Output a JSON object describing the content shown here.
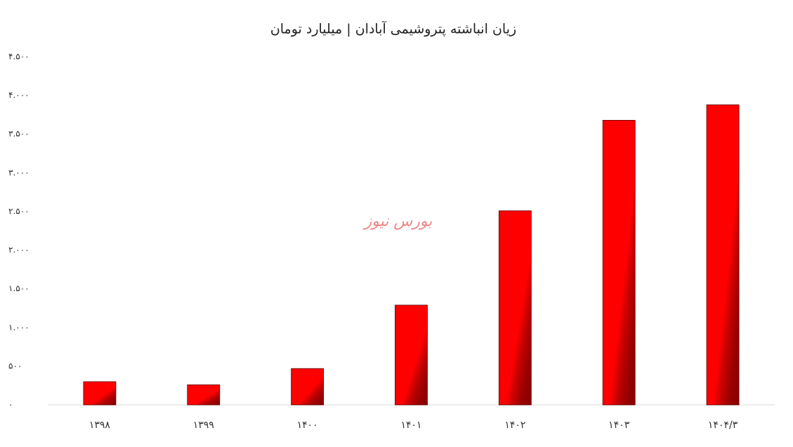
{
  "chart_data": {
    "type": "bar",
    "title": "زیان انباشته پتروشیمی آبادان | میلیارد تومان",
    "watermark": "بورس نیوز",
    "categories": [
      "۱۳۹۸",
      "۱۳۹۹",
      "۱۴۰۰",
      "۱۴۰۱",
      "۱۴۰۲",
      "۱۴۰۳",
      "۱۴۰۴/۳"
    ],
    "values": [
      300,
      260,
      470,
      1290,
      2510,
      3680,
      3880
    ],
    "color": "#ff0000",
    "ylim": [
      0,
      4500
    ],
    "yticks": [
      {
        "value": 0,
        "label": "۰"
      },
      {
        "value": 500,
        "label": "۵۰۰"
      },
      {
        "value": 1000,
        "label": "۱.۰۰۰"
      },
      {
        "value": 1500,
        "label": "۱.۵۰۰"
      },
      {
        "value": 2000,
        "label": "۲.۰۰۰"
      },
      {
        "value": 2500,
        "label": "۲.۵۰۰"
      },
      {
        "value": 3000,
        "label": "۳.۰۰۰"
      },
      {
        "value": 3500,
        "label": "۳.۵۰۰"
      },
      {
        "value": 4000,
        "label": "۴.۰۰۰"
      },
      {
        "value": 4500,
        "label": "۴.۵۰۰"
      }
    ],
    "grid": false
  }
}
